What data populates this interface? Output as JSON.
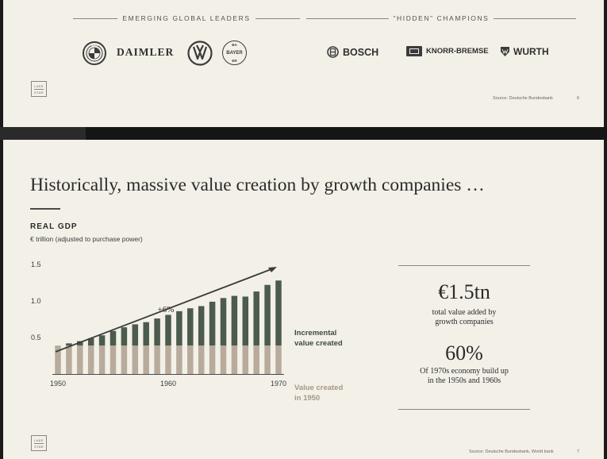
{
  "top_slide": {
    "group_left": "EMERGING GLOBAL LEADERS",
    "group_right": "“HIDDEN” CHAMPIONS",
    "logos": {
      "bmw": "BMW",
      "daimler": "DAIMLER",
      "vw": "VW",
      "bayer_top": "BA",
      "bayer_mid": "BAYER",
      "bayer_bottom": "ER",
      "bosch": "BOSCH",
      "knorr": "KNORR-BREMSE",
      "wurth": "WURTH"
    },
    "brand_mark_top": "LAKE",
    "brand_mark_bottom": "STAR",
    "source": "Source: Deutsche Bundesbank",
    "page": "6"
  },
  "bottom_slide": {
    "headline": "Historically, massive value creation by growth companies …",
    "gdp_title": "REAL GDP",
    "gdp_subtitle": "€ trillion (adjusted to purchase power)",
    "growth_label": "+6%",
    "legend_incremental": [
      "Incremental",
      "value created"
    ],
    "legend_base": [
      "Value created",
      "in 1950"
    ],
    "stat1_value": "€1.5tn",
    "stat1_desc": [
      "total value added by",
      "growth companies"
    ],
    "stat2_value": "60%",
    "stat2_desc": [
      "Of 1970s economy build up",
      "in the 1950s and 1960s"
    ],
    "brand_mark_top": "LAKE",
    "brand_mark_bottom": "STAR",
    "source": "Source: Deutsche Bundesbank, World bank",
    "page": "7"
  },
  "colors": {
    "incremental": "#4b5b4c",
    "base": "#b8ab9c",
    "background": "#f3f0e8"
  },
  "chart_data": {
    "type": "bar",
    "stacked": true,
    "title": "REAL GDP",
    "subtitle": "€ trillion (adjusted to purchase power)",
    "x": [
      1950,
      1951,
      1952,
      1953,
      1954,
      1955,
      1956,
      1957,
      1958,
      1959,
      1960,
      1961,
      1962,
      1963,
      1964,
      1965,
      1966,
      1967,
      1968,
      1969,
      1970
    ],
    "x_ticks": [
      1950,
      1960,
      1970
    ],
    "y_ticks": [
      0.5,
      1.0,
      1.5
    ],
    "y_tick_labels": [
      "0.5",
      "1.0",
      "1.5"
    ],
    "ylim": [
      0,
      1.5
    ],
    "series": [
      {
        "name": "Value created in 1950",
        "values": [
          0.39,
          0.39,
          0.39,
          0.39,
          0.39,
          0.39,
          0.39,
          0.39,
          0.39,
          0.39,
          0.39,
          0.39,
          0.39,
          0.39,
          0.39,
          0.39,
          0.39,
          0.39,
          0.39,
          0.39,
          0.39
        ]
      },
      {
        "name": "Incremental value created",
        "values": [
          0.0,
          0.03,
          0.06,
          0.1,
          0.14,
          0.2,
          0.25,
          0.29,
          0.32,
          0.37,
          0.42,
          0.47,
          0.51,
          0.54,
          0.6,
          0.65,
          0.68,
          0.67,
          0.74,
          0.83,
          0.89
        ]
      }
    ],
    "annotation": "+6%",
    "grid": false
  }
}
